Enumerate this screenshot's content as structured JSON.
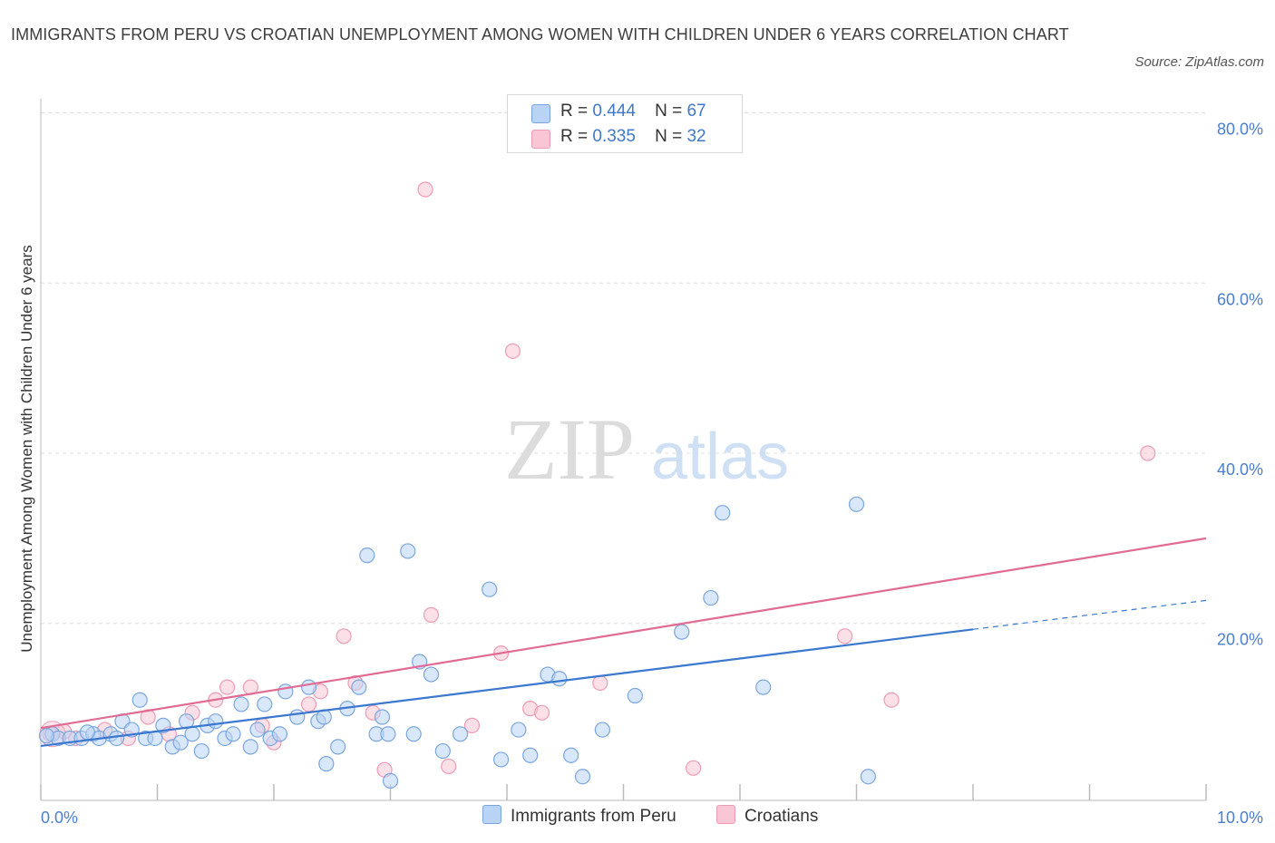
{
  "title": "IMMIGRANTS FROM PERU VS CROATIAN UNEMPLOYMENT AMONG WOMEN WITH CHILDREN UNDER 6 YEARS CORRELATION CHART",
  "source": "Source: ZipAtlas.com",
  "watermark": {
    "zip": "ZIP",
    "atlas": "atlas"
  },
  "legend": {
    "peru": {
      "r_label": "R =",
      "r_value": "0.444",
      "n_label": "N =",
      "n_value": "67"
    },
    "croatians": {
      "r_label": "R =",
      "r_value": "0.335",
      "n_label": "N =",
      "n_value": "32"
    }
  },
  "colors": {
    "peru_fill": "#b9d3f5",
    "peru_stroke": "#7aa6de",
    "peru_line": "#3a78d0",
    "cro_fill": "#f8c6d4",
    "cro_stroke": "#ee9bb4",
    "cro_line": "#e06b93",
    "tick": "#4a7fd0",
    "grid": "#dddddd"
  },
  "chart_data": {
    "type": "scatter",
    "title": "IMMIGRANTS FROM PERU VS CROATIAN UNEMPLOYMENT AMONG WOMEN WITH CHILDREN UNDER 6 YEARS CORRELATION CHART",
    "xlabel": "",
    "ylabel": "Unemployment Among Women with Children Under 6 years",
    "xlim": [
      0,
      10
    ],
    "ylim": [
      -0.8,
      80.8
    ],
    "x_tick_labels": [
      {
        "value": 0,
        "label": "0.0%"
      },
      {
        "value": 10,
        "label": "10.0%"
      }
    ],
    "y_tick_labels": [
      {
        "value": 20,
        "label": "20.0%"
      },
      {
        "value": 40,
        "label": "40.0%"
      },
      {
        "value": 60,
        "label": "60.0%"
      },
      {
        "value": 80,
        "label": "80.0%"
      }
    ],
    "grid": true,
    "legend_position": "top-center",
    "series": [
      {
        "name": "Immigrants from Peru",
        "R": 0.444,
        "N": 67,
        "trend": {
          "x0": 0,
          "y0": 5.6,
          "x1": 8,
          "y1": 19.3,
          "dashed_to_x": 10,
          "dashed_to_y": 22.7
        },
        "points": [
          [
            0.1,
            7
          ],
          [
            0.15,
            6.5
          ],
          [
            0.25,
            6.5
          ],
          [
            0.35,
            6.5
          ],
          [
            0.45,
            7
          ],
          [
            0.5,
            6.5
          ],
          [
            0.6,
            7
          ],
          [
            0.65,
            6.5
          ],
          [
            0.7,
            8.5
          ],
          [
            0.78,
            7.5
          ],
          [
            0.85,
            11
          ],
          [
            0.9,
            6.5
          ],
          [
            0.98,
            6.5
          ],
          [
            1.05,
            8
          ],
          [
            1.13,
            5.5
          ],
          [
            1.2,
            6
          ],
          [
            1.25,
            8.5
          ],
          [
            1.3,
            7
          ],
          [
            1.38,
            5
          ],
          [
            1.43,
            8
          ],
          [
            1.5,
            8.5
          ],
          [
            1.58,
            6.5
          ],
          [
            1.65,
            7
          ],
          [
            1.72,
            10.5
          ],
          [
            1.8,
            5.5
          ],
          [
            1.86,
            7.5
          ],
          [
            1.92,
            10.5
          ],
          [
            1.97,
            6.5
          ],
          [
            2.05,
            7
          ],
          [
            2.1,
            12
          ],
          [
            2.2,
            9
          ],
          [
            2.3,
            12.5
          ],
          [
            2.38,
            8.5
          ],
          [
            2.43,
            9
          ],
          [
            2.55,
            5.5
          ],
          [
            2.45,
            3.5
          ],
          [
            2.63,
            10
          ],
          [
            2.73,
            12.5
          ],
          [
            2.8,
            28
          ],
          [
            2.88,
            7
          ],
          [
            2.93,
            9
          ],
          [
            2.98,
            7
          ],
          [
            3.0,
            1.5
          ],
          [
            3.15,
            28.5
          ],
          [
            3.2,
            7
          ],
          [
            3.25,
            15.5
          ],
          [
            3.35,
            14
          ],
          [
            3.45,
            5
          ],
          [
            3.6,
            7
          ],
          [
            3.85,
            24
          ],
          [
            3.95,
            4
          ],
          [
            4.1,
            7.5
          ],
          [
            4.2,
            4.5
          ],
          [
            4.35,
            14
          ],
          [
            4.45,
            13.5
          ],
          [
            4.55,
            4.5
          ],
          [
            4.65,
            2
          ],
          [
            4.82,
            7.5
          ],
          [
            5.1,
            11.5
          ],
          [
            5.5,
            19
          ],
          [
            5.75,
            23
          ],
          [
            5.85,
            33
          ],
          [
            6.2,
            12.5
          ],
          [
            7.0,
            34
          ],
          [
            7.1,
            2
          ],
          [
            0.05,
            6.8
          ],
          [
            0.4,
            7.2
          ]
        ]
      },
      {
        "name": "Croatians",
        "R": 0.335,
        "N": 32,
        "trend": {
          "x0": 0,
          "y0": 7.7,
          "x1": 10,
          "y1": 30.0
        },
        "points": [
          [
            0.08,
            7
          ],
          [
            0.3,
            6.5
          ],
          [
            0.55,
            7.5
          ],
          [
            0.75,
            6.5
          ],
          [
            0.92,
            9
          ],
          [
            1.1,
            7
          ],
          [
            1.3,
            9.5
          ],
          [
            1.5,
            11
          ],
          [
            1.6,
            12.5
          ],
          [
            1.8,
            12.5
          ],
          [
            1.9,
            8
          ],
          [
            2.0,
            6
          ],
          [
            2.3,
            10.5
          ],
          [
            2.4,
            12
          ],
          [
            2.6,
            18.5
          ],
          [
            2.7,
            13
          ],
          [
            2.85,
            9.5
          ],
          [
            2.95,
            2.8
          ],
          [
            3.3,
            71
          ],
          [
            3.35,
            21
          ],
          [
            3.5,
            3.2
          ],
          [
            3.7,
            8
          ],
          [
            3.95,
            16.5
          ],
          [
            4.05,
            52
          ],
          [
            4.2,
            10
          ],
          [
            4.3,
            9.5
          ],
          [
            4.8,
            13
          ],
          [
            5.6,
            3
          ],
          [
            6.9,
            18.5
          ],
          [
            7.3,
            11
          ],
          [
            9.5,
            40
          ],
          [
            0.2,
            7.3
          ]
        ]
      }
    ]
  },
  "bottom_legend": [
    "Immigrants from Peru",
    "Croatians"
  ]
}
